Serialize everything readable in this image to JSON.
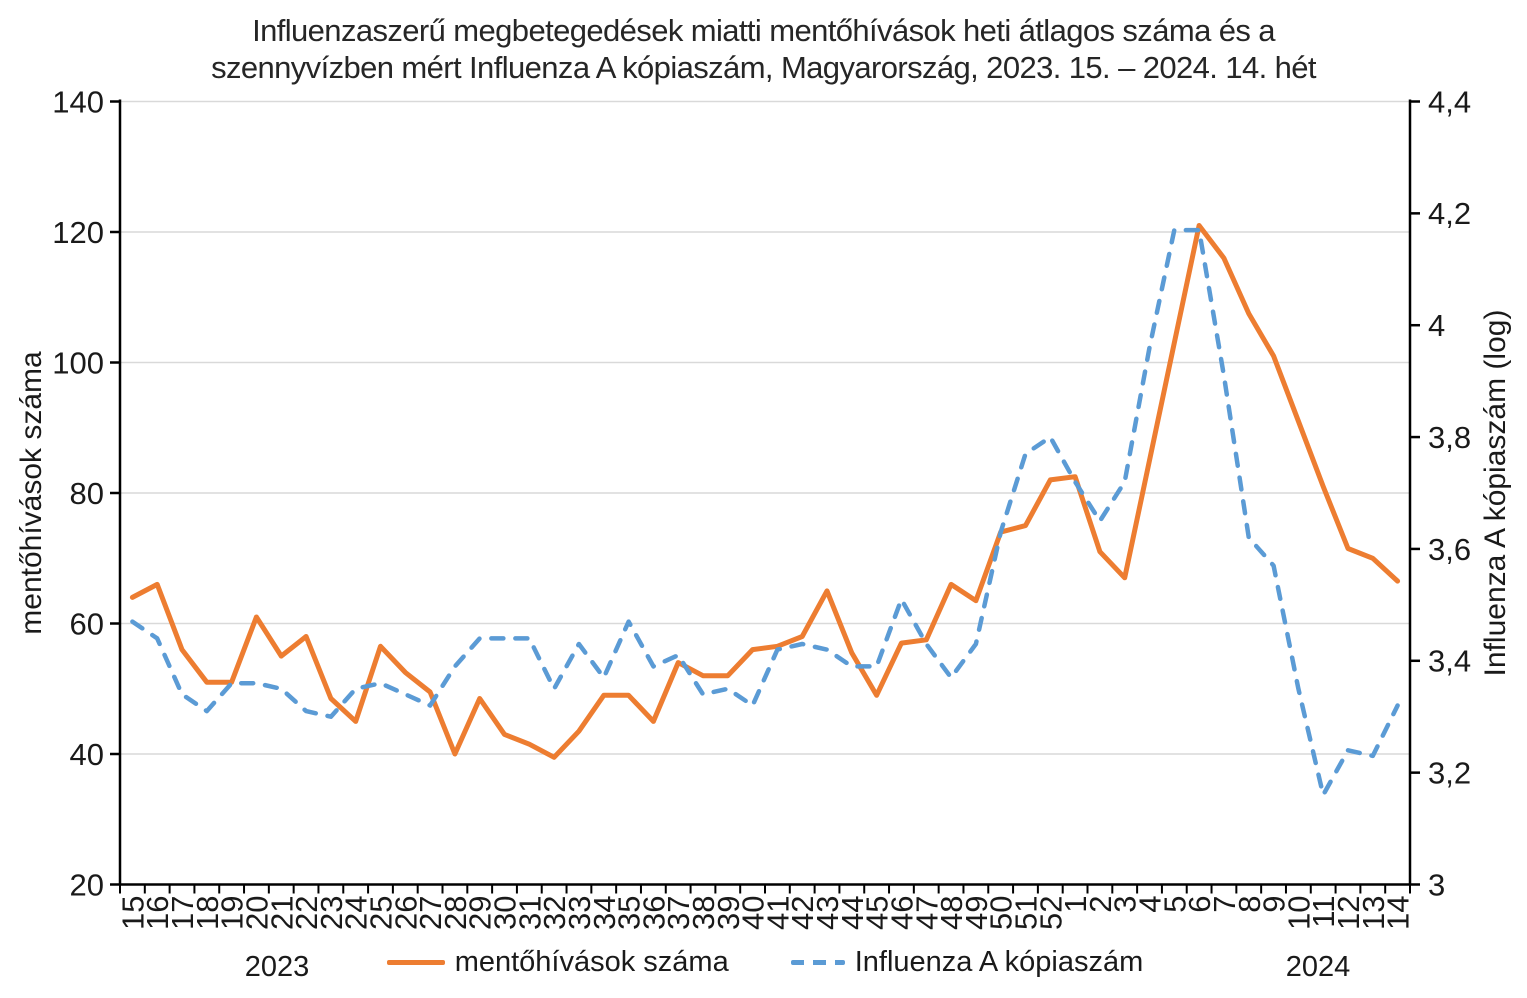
{
  "title": {
    "line1": "Influenzaszerű megbetegedések miatti mentőhívások heti átlagos száma és a",
    "line2": "szennyvízben mért Influenza A kópiaszám, Magyarország, 2023. 15. – 2024. 14. hét"
  },
  "x_axis": {
    "year_left": "2023",
    "year_right": "2024"
  },
  "chart_data": {
    "type": "line",
    "title": "Influenzaszerű megbetegedések miatti mentőhívások heti átlagos száma és a szennyvízben mért Influenza A kópiaszám, Magyarország, 2023. 15. – 2024. 14. hét",
    "grid": true,
    "legend_position": "bottom",
    "x_categories": [
      "15",
      "16",
      "17",
      "18",
      "19",
      "20",
      "21",
      "22",
      "23",
      "24",
      "25",
      "26",
      "27",
      "28",
      "29",
      "30",
      "31",
      "32",
      "33",
      "34",
      "35",
      "36",
      "37",
      "38",
      "39",
      "40",
      "41",
      "42",
      "43",
      "44",
      "45",
      "46",
      "47",
      "48",
      "49",
      "50",
      "51",
      "52",
      "1",
      "2",
      "3",
      "4",
      "5",
      "6",
      "7",
      "8",
      "9",
      "10",
      "11",
      "12",
      "13",
      "14"
    ],
    "axes": {
      "left": {
        "title": "mentőhívások száma",
        "min": 20,
        "max": 140,
        "step": 20,
        "ticks": [
          {
            "value": 140,
            "label": "140"
          },
          {
            "value": 120,
            "label": "120"
          },
          {
            "value": 100,
            "label": "100"
          },
          {
            "value": 80,
            "label": "80"
          },
          {
            "value": 60,
            "label": "60"
          },
          {
            "value": 40,
            "label": "40"
          },
          {
            "value": 20,
            "label": "20"
          }
        ]
      },
      "right": {
        "title": "Influenza A kópiaszám (log)",
        "min": 3,
        "max": 4.4,
        "step": 0.2,
        "ticks": [
          {
            "value": 4.4,
            "label": "4,4"
          },
          {
            "value": 4.2,
            "label": "4,2"
          },
          {
            "value": 4.0,
            "label": "4"
          },
          {
            "value": 3.8,
            "label": "3,8"
          },
          {
            "value": 3.6,
            "label": "3,6"
          },
          {
            "value": 3.4,
            "label": "3,4"
          },
          {
            "value": 3.2,
            "label": "3,2"
          },
          {
            "value": 3.0,
            "label": "3"
          }
        ]
      }
    },
    "series": [
      {
        "name": "mentőhívások száma",
        "axis": "left",
        "color": "#ED7D31",
        "style": "solid",
        "values": [
          64,
          66,
          56,
          51,
          51,
          61,
          55,
          58,
          48.5,
          45,
          56.5,
          52.5,
          49.5,
          40,
          48.5,
          43,
          41.5,
          39.5,
          43.5,
          49,
          49,
          45,
          54,
          52,
          52,
          56,
          56.5,
          58,
          65,
          55.5,
          49,
          57,
          57.5,
          66,
          63.5,
          74,
          75,
          82,
          82.5,
          71,
          67,
          85,
          103,
          121,
          116,
          107.5,
          101,
          91,
          81,
          71.5,
          70,
          66.5
        ]
      },
      {
        "name": "Influenza A kópiaszám",
        "axis": "right",
        "color": "#5B9BD5",
        "style": "dashed",
        "values": [
          3.47,
          3.44,
          3.34,
          3.31,
          3.36,
          3.36,
          3.35,
          3.31,
          3.3,
          3.35,
          3.36,
          3.34,
          3.32,
          3.39,
          3.44,
          3.44,
          3.44,
          3.35,
          3.43,
          3.37,
          3.47,
          3.39,
          3.41,
          3.34,
          3.35,
          3.32,
          3.42,
          3.43,
          3.42,
          3.39,
          3.39,
          3.51,
          3.43,
          3.37,
          3.43,
          3.63,
          3.77,
          3.8,
          3.72,
          3.65,
          3.72,
          3.96,
          4.17,
          4.17,
          3.91,
          3.62,
          3.57,
          3.35,
          3.16,
          3.24,
          3.23,
          3.32
        ]
      }
    ],
    "colors": {
      "gridline": "#D9D9D9",
      "axis_line": "#000000",
      "text": "#1a1a1a"
    }
  }
}
